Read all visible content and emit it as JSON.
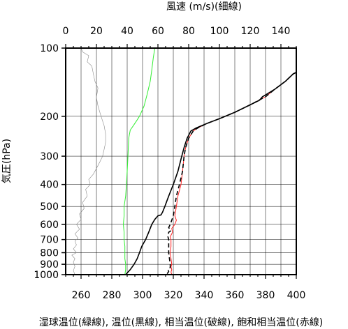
{
  "chart_data": {
    "type": "line",
    "title_top": "風速 (m/s)(細線)",
    "ylabel": "気圧(hPa)",
    "xlabel": "湿球温位(緑線), 温位(黒線), 相当温位(破線), 飽和相当温位(赤線)",
    "y_scale": "log",
    "y_range": [
      100,
      1000
    ],
    "y_ticks": [
      100,
      200,
      300,
      400,
      500,
      600,
      700,
      800,
      900,
      1000
    ],
    "x_range": [
      250,
      400
    ],
    "x_ticks": [
      260,
      280,
      300,
      320,
      340,
      360,
      380,
      400
    ],
    "x_top_range": [
      0,
      150
    ],
    "x_top_ticks": [
      0,
      20,
      40,
      60,
      80,
      100,
      120,
      140
    ],
    "grid": true,
    "colors": {
      "wetbulb": "#33ee33",
      "theta": "#000000",
      "thetae": "#000000",
      "thetaes": "#ff2222",
      "wind": "#888888"
    },
    "series": [
      {
        "key": "wetbulb",
        "axis": "bottom",
        "style": "solid",
        "points": [
          [
            288.5,
            1000
          ],
          [
            289,
            950
          ],
          [
            289,
            900
          ],
          [
            288.5,
            850
          ],
          [
            288.5,
            800
          ],
          [
            288.5,
            750
          ],
          [
            288,
            700
          ],
          [
            288,
            650
          ],
          [
            287.5,
            600
          ],
          [
            288,
            550
          ],
          [
            288,
            500
          ],
          [
            289,
            450
          ],
          [
            289.5,
            400
          ],
          [
            290,
            350
          ],
          [
            290.5,
            300
          ],
          [
            291,
            250
          ],
          [
            292,
            230
          ],
          [
            294,
            220
          ],
          [
            296,
            210
          ],
          [
            298,
            200
          ],
          [
            301,
            180
          ],
          [
            303,
            160
          ],
          [
            305,
            140
          ],
          [
            306,
            125
          ],
          [
            307,
            110
          ],
          [
            308,
            100
          ]
        ]
      },
      {
        "key": "thetaes",
        "axis": "bottom",
        "style": "solid",
        "points": [
          [
            319,
            1000
          ],
          [
            318.5,
            975
          ],
          [
            319,
            950
          ],
          [
            318.5,
            925
          ],
          [
            319,
            900
          ],
          [
            318.5,
            850
          ],
          [
            318,
            800
          ],
          [
            318.5,
            750
          ],
          [
            318.5,
            700
          ],
          [
            318,
            680
          ],
          [
            319.5,
            650
          ],
          [
            319,
            625
          ],
          [
            321,
            600
          ],
          [
            322,
            575
          ],
          [
            321,
            550
          ],
          [
            322,
            500
          ],
          [
            323,
            450
          ],
          [
            325,
            400
          ],
          [
            326,
            350
          ],
          [
            327,
            300
          ],
          [
            328,
            275
          ],
          [
            330,
            250
          ],
          [
            333,
            232
          ],
          [
            336,
            225
          ],
          [
            342,
            215
          ],
          [
            350,
            205
          ],
          [
            360,
            192
          ],
          [
            370,
            178
          ],
          [
            380,
            164
          ],
          [
            386,
            152
          ],
          [
            393,
            140
          ],
          [
            398,
            130
          ],
          [
            400,
            128
          ]
        ]
      },
      {
        "key": "thetae",
        "axis": "bottom",
        "style": "dashed",
        "points": [
          [
            316,
            990
          ],
          [
            317,
            970
          ],
          [
            316.5,
            950
          ],
          [
            318,
            930
          ],
          [
            318,
            900
          ],
          [
            317.5,
            850
          ],
          [
            317,
            800
          ],
          [
            317,
            750
          ],
          [
            317,
            700
          ],
          [
            316.5,
            680
          ],
          [
            317,
            650
          ],
          [
            318.5,
            640
          ],
          [
            317,
            620
          ],
          [
            318,
            600
          ],
          [
            319,
            575
          ],
          [
            320,
            550
          ],
          [
            321,
            500
          ],
          [
            322,
            450
          ],
          [
            324,
            400
          ],
          [
            326,
            350
          ],
          [
            327,
            300
          ],
          [
            328,
            275
          ],
          [
            330,
            250
          ],
          [
            333,
            232
          ],
          [
            336,
            225
          ],
          [
            342,
            215
          ],
          [
            350,
            205
          ],
          [
            360,
            192
          ],
          [
            370,
            178
          ],
          [
            380,
            164
          ],
          [
            386,
            152
          ],
          [
            393,
            140
          ],
          [
            398,
            130
          ],
          [
            400,
            128
          ]
        ]
      },
      {
        "key": "theta",
        "axis": "bottom",
        "style": "solid",
        "points": [
          [
            289,
            1000
          ],
          [
            292,
            950
          ],
          [
            294.5,
            900
          ],
          [
            296.5,
            850
          ],
          [
            298,
            800
          ],
          [
            299.5,
            750
          ],
          [
            302,
            700
          ],
          [
            304,
            650
          ],
          [
            306,
            600
          ],
          [
            308,
            570
          ],
          [
            310,
            550
          ],
          [
            312,
            545
          ],
          [
            313,
            530
          ],
          [
            314.5,
            500
          ],
          [
            317,
            450
          ],
          [
            320,
            400
          ],
          [
            323,
            350
          ],
          [
            325.5,
            300
          ],
          [
            327,
            275
          ],
          [
            329,
            250
          ],
          [
            331.5,
            232
          ],
          [
            335,
            225
          ],
          [
            342,
            215
          ],
          [
            350,
            205
          ],
          [
            360,
            192
          ],
          [
            370,
            178
          ],
          [
            376,
            170
          ],
          [
            378,
            164
          ],
          [
            386,
            152
          ],
          [
            393,
            140
          ],
          [
            398,
            130
          ],
          [
            400,
            128
          ]
        ]
      },
      {
        "key": "wind",
        "axis": "top",
        "style": "solid",
        "points": [
          [
            6,
            1000
          ],
          [
            5,
            960
          ],
          [
            6,
            920
          ],
          [
            5,
            880
          ],
          [
            6,
            850
          ],
          [
            4,
            820
          ],
          [
            7,
            800
          ],
          [
            5,
            770
          ],
          [
            7,
            740
          ],
          [
            6,
            710
          ],
          [
            8,
            690
          ],
          [
            6,
            660
          ],
          [
            9,
            630
          ],
          [
            7,
            600
          ],
          [
            10,
            570
          ],
          [
            9,
            540
          ],
          [
            12,
            510
          ],
          [
            11,
            480
          ],
          [
            14,
            450
          ],
          [
            13,
            420
          ],
          [
            16,
            400
          ],
          [
            15,
            380
          ],
          [
            18,
            360
          ],
          [
            20,
            340
          ],
          [
            22,
            320
          ],
          [
            24,
            300
          ],
          [
            25,
            280
          ],
          [
            26,
            260
          ],
          [
            26,
            240
          ],
          [
            25,
            220
          ],
          [
            23,
            200
          ],
          [
            21,
            180
          ],
          [
            20,
            165
          ],
          [
            21,
            150
          ],
          [
            19,
            140
          ],
          [
            18,
            130
          ],
          [
            17,
            120
          ],
          [
            14,
            115
          ],
          [
            15,
            108
          ],
          [
            11,
            104
          ],
          [
            10,
            100
          ]
        ]
      }
    ]
  }
}
